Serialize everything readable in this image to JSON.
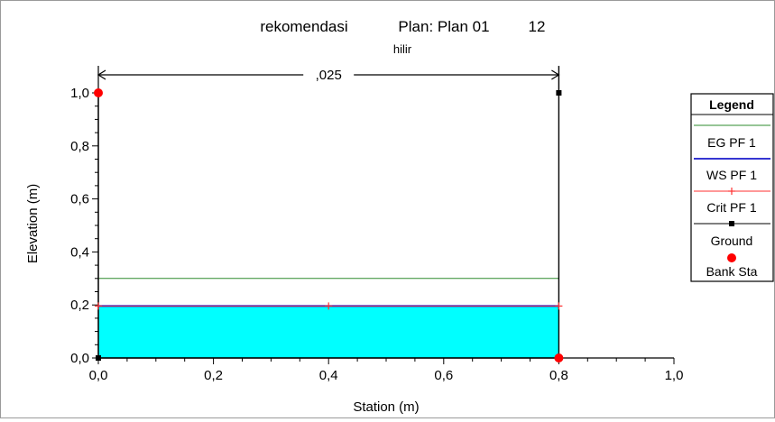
{
  "chart_data": {
    "type": "line",
    "title_parts": [
      "rekomendasi",
      "Plan: Plan 01",
      "12"
    ],
    "subtitle": "hilir",
    "xlabel": "Station (m)",
    "ylabel": "Elevation (m)",
    "xlim": [
      0.0,
      1.0
    ],
    "ylim": [
      0.0,
      1.0
    ],
    "xticks": [
      "0,0",
      "0,2",
      "0,4",
      "0,6",
      "0,8",
      "1,0"
    ],
    "yticks": [
      "0,0",
      "0,2",
      "0,4",
      "0,6",
      "0,8",
      "1,0"
    ],
    "manning_label": ",025",
    "manning_range": [
      0.0,
      0.8
    ],
    "series": [
      {
        "name": "EG PF 1",
        "color": "#2e8b2e",
        "x": [
          0.0,
          0.8
        ],
        "y": [
          0.3,
          0.3
        ]
      },
      {
        "name": "WS PF 1",
        "color": "#1a1acc",
        "x": [
          0.0,
          0.8
        ],
        "y": [
          0.196,
          0.196
        ]
      },
      {
        "name": "Crit PF 1",
        "color": "#ff3030",
        "x": [
          0.0,
          0.4,
          0.8
        ],
        "y": [
          0.196,
          0.196,
          0.196
        ]
      },
      {
        "name": "Ground",
        "color": "#000000",
        "x": [
          0.0,
          0.0,
          0.8,
          0.8
        ],
        "y": [
          1.0,
          0.0,
          0.0,
          1.0
        ]
      },
      {
        "name": "Bank Sta",
        "color": "#ff0000",
        "x": [
          0.0,
          0.8
        ],
        "y": [
          1.0,
          0.0
        ]
      }
    ],
    "water_fill": "#00ffff",
    "legend_title": "Legend",
    "legend_position": "right",
    "grid": false
  }
}
